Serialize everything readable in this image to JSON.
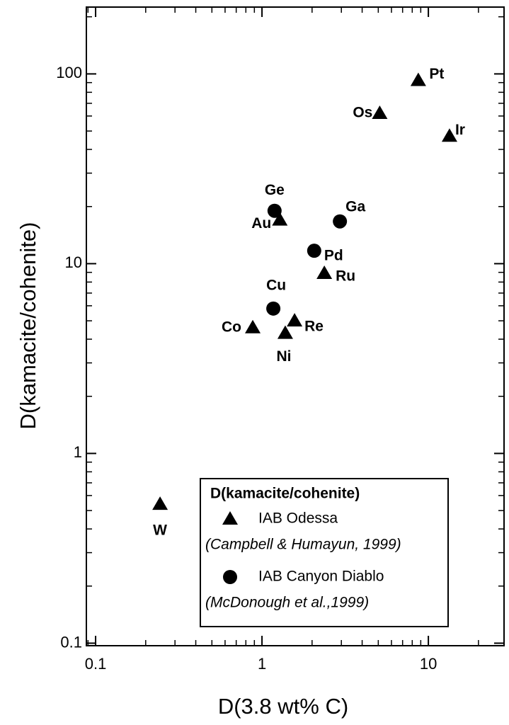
{
  "chart_data": {
    "type": "scatter",
    "xlabel": "D(3.8 wt% C)",
    "ylabel": "D(kamacite/cohenite)",
    "xscale": "log",
    "yscale": "log",
    "xlim": [
      0.088,
      28.5
    ],
    "ylim": [
      0.097,
      225
    ],
    "xticks": [
      0.1,
      1,
      10
    ],
    "yticks": [
      0.1,
      1,
      10,
      100
    ],
    "legend_title": "D(kamacite/cohenite)",
    "legend_loc": "lower right",
    "series": [
      {
        "name": "IAB Odessa",
        "citation": "(Campbell & Humayun, 1999)",
        "marker": "triangle",
        "color": "#000000",
        "point_labels": [
          "Pt",
          "Os",
          "Ir",
          "Au",
          "Ru",
          "Re",
          "Co",
          "Ni",
          "W"
        ],
        "x": [
          8.7,
          5.1,
          13.4,
          1.28,
          2.37,
          1.57,
          0.88,
          1.38,
          0.244
        ],
        "values": [
          92.5,
          62,
          47,
          17,
          8.9,
          5.0,
          4.6,
          4.3,
          0.54
        ]
      },
      {
        "name": "IAB Canyon Diablo",
        "citation": "(McDonough et al.,1999)",
        "marker": "circle",
        "color": "#000000",
        "point_labels": [
          "Ge",
          "Ga",
          "Pd",
          "Cu"
        ],
        "x": [
          1.19,
          2.94,
          2.06,
          1.17
        ],
        "values": [
          19,
          16.7,
          11.7,
          5.8
        ]
      }
    ]
  }
}
